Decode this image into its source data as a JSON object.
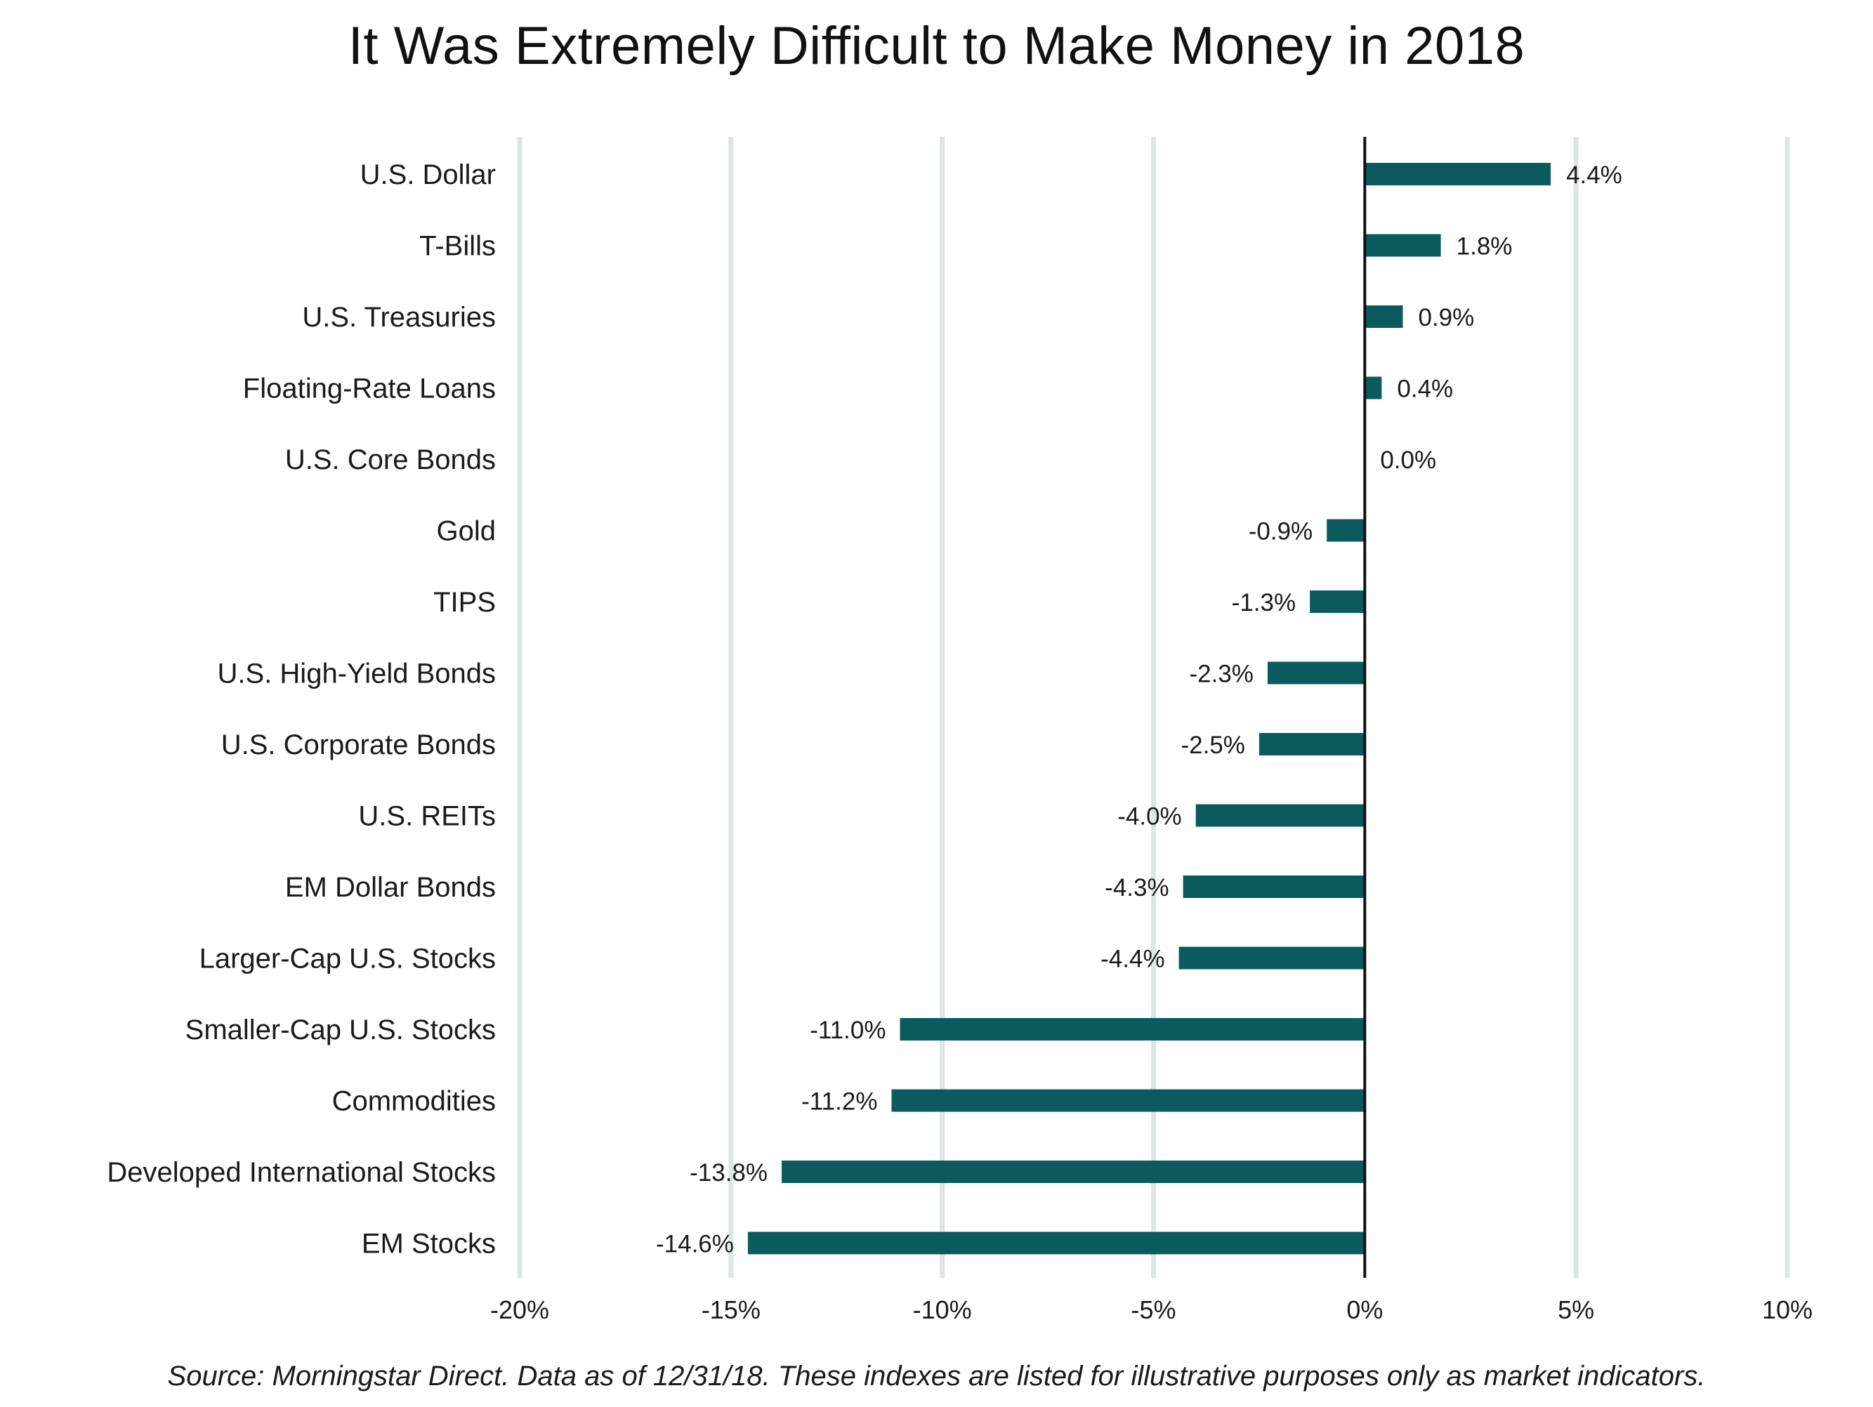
{
  "chart_data": {
    "type": "bar",
    "orientation": "horizontal",
    "title": "It Was Extremely Difficult to Make Money in 2018",
    "categories": [
      "U.S. Dollar",
      "T-Bills",
      "U.S. Treasuries",
      "Floating-Rate Loans",
      "U.S. Core Bonds",
      "Gold",
      "TIPS",
      "U.S. High-Yield Bonds",
      "U.S. Corporate Bonds",
      "U.S. REITs",
      "EM Dollar Bonds",
      "Larger-Cap U.S. Stocks",
      "Smaller-Cap U.S. Stocks",
      "Commodities",
      "Developed International Stocks",
      "EM Stocks"
    ],
    "values": [
      4.4,
      1.8,
      0.9,
      0.4,
      0.0,
      -0.9,
      -1.3,
      -2.3,
      -2.5,
      -4.0,
      -4.3,
      -4.4,
      -11.0,
      -11.2,
      -13.8,
      -14.6
    ],
    "value_labels": [
      "4.4%",
      "1.8%",
      "0.9%",
      "0.4%",
      "0.0%",
      "-0.9%",
      "-1.3%",
      "-2.3%",
      "-2.5%",
      "-4.0%",
      "-4.3%",
      "-4.4%",
      "-11.0%",
      "-11.2%",
      "-13.8%",
      "-14.6%"
    ],
    "x_ticks": [
      -20,
      -15,
      -10,
      -5,
      0,
      5,
      10
    ],
    "x_tick_labels": [
      "-20%",
      "-15%",
      "-10%",
      "-5%",
      "0%",
      "5%",
      "10%"
    ],
    "xlim": [
      -20,
      10
    ],
    "xlabel": "",
    "ylabel": "",
    "grid": "vertical",
    "legend": "none",
    "footnote": "Source: Morningstar Direct. Data as of 12/31/18. These indexes are listed for illustrative purposes only as market indicators.",
    "colors": {
      "bar": "#0b5b5e",
      "gridline": "#dfe4e4",
      "zero_line": "#111111",
      "text": "#1a1a1a"
    }
  }
}
